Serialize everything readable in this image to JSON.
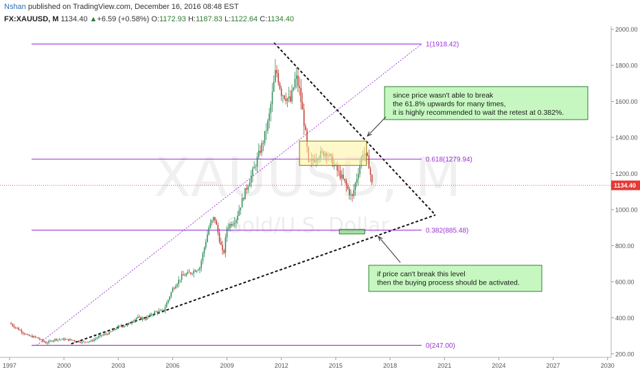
{
  "header": {
    "author": "Nshan",
    "published": " published on TradingView.com, December 16, 2016 08:48 EST",
    "symbol": "FX:XAUUSD, M",
    "last": "1134.40",
    "change_arrow": "▲",
    "change": "+6.59 (+0.58%)",
    "o_label": "O:",
    "o": "1172.93",
    "h_label": "H:",
    "h": "1187.83",
    "l_label": "L:",
    "l": "1122.64",
    "c_label": "C:",
    "c": "1134.40"
  },
  "watermark": {
    "main": "XAUUSD, M",
    "sub": "Gold/U.S. Dollar"
  },
  "colors": {
    "up": "#2e8b57",
    "down": "#c0392b",
    "fib": "#9b30d9",
    "price_line": "#e53935",
    "box_fill": "#fff3a0",
    "note_fill": "#c6f7c0",
    "note_border": "#2e7d32"
  },
  "chart_data": {
    "type": "candlestick",
    "symbol": "XAUUSD",
    "timeframe": "M",
    "ylim": [
      180,
      2010
    ],
    "xlim": [
      1996.7,
      2030.2
    ],
    "y_ticks": [
      "200.00",
      "400.00",
      "600.00",
      "800.00",
      "1000.00",
      "1200.00",
      "1400.00",
      "1600.00",
      "1800.00",
      "2000.00"
    ],
    "x_ticks": [
      "1997",
      "2000",
      "2003",
      "2006",
      "2009",
      "2012",
      "2015",
      "2018",
      "2021",
      "2024",
      "2027",
      "2030"
    ],
    "last_price": {
      "value": 1134.4,
      "label": "1134.40"
    },
    "fib_levels": [
      {
        "label": "1(1918.42)",
        "value": 1918.42
      },
      {
        "label": "0.618(1279.94)",
        "value": 1279.94
      },
      {
        "label": "0.382(885.48)",
        "value": 885.48
      },
      {
        "label": "0(247.00)",
        "value": 247.0
      }
    ],
    "price_path": [
      [
        1997.0,
        370
      ],
      [
        1997.5,
        335
      ],
      [
        1998.0,
        300
      ],
      [
        1998.5,
        290
      ],
      [
        1999.0,
        260
      ],
      [
        1999.5,
        280
      ],
      [
        2000.0,
        280
      ],
      [
        2000.5,
        275
      ],
      [
        2001.0,
        265
      ],
      [
        2001.5,
        270
      ],
      [
        2002.0,
        300
      ],
      [
        2002.5,
        315
      ],
      [
        2003.0,
        350
      ],
      [
        2003.5,
        360
      ],
      [
        2004.0,
        400
      ],
      [
        2004.5,
        395
      ],
      [
        2005.0,
        430
      ],
      [
        2005.5,
        440
      ],
      [
        2006.0,
        560
      ],
      [
        2006.5,
        630
      ],
      [
        2007.0,
        650
      ],
      [
        2007.5,
        680
      ],
      [
        2008.0,
        900
      ],
      [
        2008.3,
        960
      ],
      [
        2008.8,
        740
      ],
      [
        2009.0,
        900
      ],
      [
        2009.5,
        950
      ],
      [
        2010.0,
        1100
      ],
      [
        2010.5,
        1230
      ],
      [
        2011.0,
        1380
      ],
      [
        2011.3,
        1500
      ],
      [
        2011.7,
        1780
      ],
      [
        2012.0,
        1650
      ],
      [
        2012.5,
        1600
      ],
      [
        2012.8,
        1740
      ],
      [
        2013.0,
        1660
      ],
      [
        2013.3,
        1450
      ],
      [
        2013.5,
        1250
      ],
      [
        2014.0,
        1300
      ],
      [
        2014.5,
        1320
      ],
      [
        2015.0,
        1230
      ],
      [
        2015.5,
        1150
      ],
      [
        2015.9,
        1060
      ],
      [
        2016.0,
        1110
      ],
      [
        2016.5,
        1320
      ],
      [
        2016.8,
        1270
      ],
      [
        2017.0,
        1140
      ]
    ]
  },
  "annotations": {
    "note1": [
      "since price wasn't able to break",
      "the 61.8% upwards for many times,",
      "it is highly recommended to wait the retest at 0.382%."
    ],
    "note2": [
      "if price can't break this level",
      "then the buying process should be activated."
    ]
  }
}
